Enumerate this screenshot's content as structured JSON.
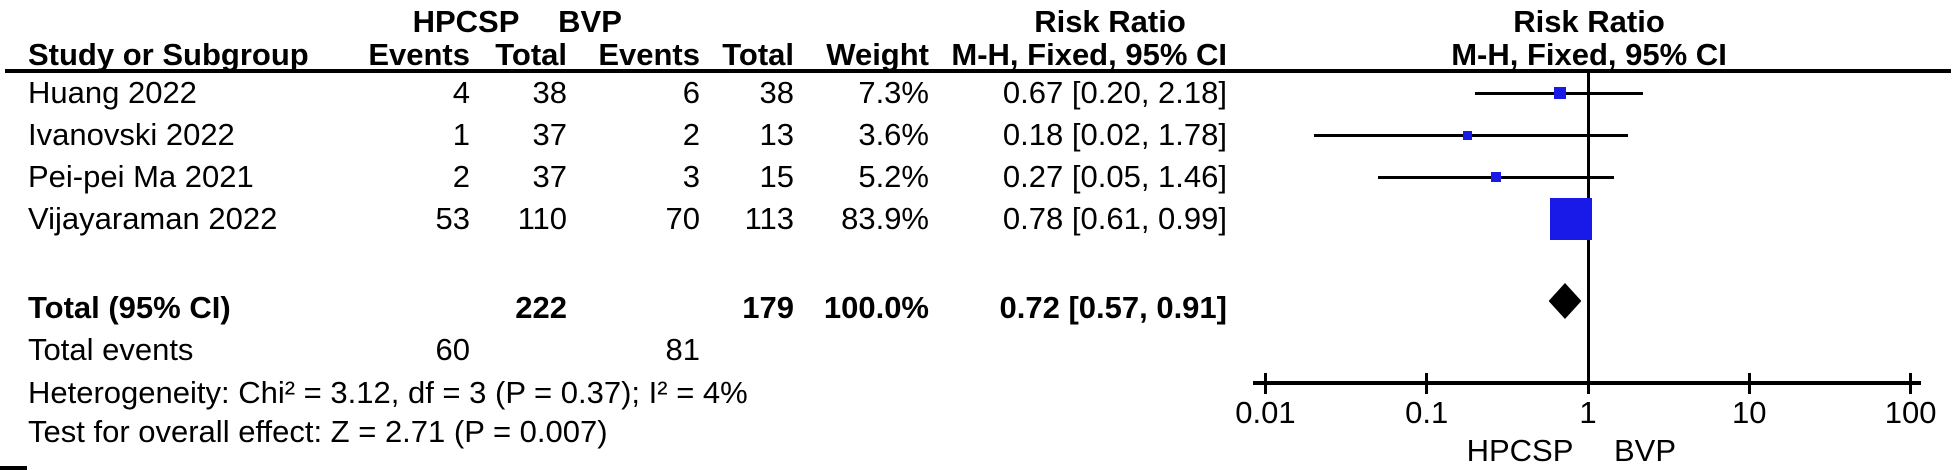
{
  "table": {
    "group1_label": "HPCSP",
    "group2_label": "BVP",
    "col_study": "Study or Subgroup",
    "col_events1": "Events",
    "col_total1": "Total",
    "col_events2": "Events",
    "col_total2": "Total",
    "col_weight": "Weight",
    "col_rr_line1": "Risk Ratio",
    "col_rr_line2": "M-H, Fixed, 95% CI",
    "plot_rr_line1": "Risk Ratio",
    "plot_rr_line2": "M-H, Fixed, 95% CI"
  },
  "chart_data": {
    "type": "forest",
    "scale": "log10",
    "effect_measure": "Risk Ratio, M-H, Fixed, 95% CI",
    "x_ticks": [
      {
        "label": "0.01",
        "value": 0.01
      },
      {
        "label": "0.1",
        "value": 0.1
      },
      {
        "label": "1",
        "value": 1
      },
      {
        "label": "10",
        "value": 10
      },
      {
        "label": "100",
        "value": 100
      }
    ],
    "x_range": [
      0.01,
      100
    ],
    "favours_left": "HPCSP",
    "favours_right": "BVP",
    "marker_color": "#1a1ae8",
    "studies": [
      {
        "name": "Huang 2022",
        "events1": "4",
        "total1": "38",
        "events2": "6",
        "total2": "38",
        "weight": "7.3%",
        "weight_value": 7.3,
        "rr": 0.67,
        "ci_low": 0.2,
        "ci_high": 2.18,
        "ci_label": "0.67 [0.20, 2.18]"
      },
      {
        "name": "Ivanovski 2022",
        "events1": "1",
        "total1": "37",
        "events2": "2",
        "total2": "13",
        "weight": "3.6%",
        "weight_value": 3.6,
        "rr": 0.18,
        "ci_low": 0.02,
        "ci_high": 1.78,
        "ci_label": "0.18 [0.02, 1.78]"
      },
      {
        "name": "Pei-pei Ma 2021",
        "events1": "2",
        "total1": "37",
        "events2": "3",
        "total2": "15",
        "weight": "5.2%",
        "weight_value": 5.2,
        "rr": 0.27,
        "ci_low": 0.05,
        "ci_high": 1.46,
        "ci_label": "0.27 [0.05, 1.46]"
      },
      {
        "name": "Vijayaraman 2022",
        "events1": "53",
        "total1": "110",
        "events2": "70",
        "total2": "113",
        "weight": "83.9%",
        "weight_value": 83.9,
        "rr": 0.78,
        "ci_low": 0.61,
        "ci_high": 0.99,
        "ci_label": "0.78 [0.61, 0.99]"
      }
    ],
    "total": {
      "label": "Total (95% CI)",
      "total1": "222",
      "total2": "179",
      "weight": "100.0%",
      "rr": 0.72,
      "ci_low": 0.57,
      "ci_high": 0.91,
      "ci_label": "0.72 [0.57, 0.91]"
    },
    "total_events": {
      "label": "Total events",
      "events1": "60",
      "events2": "81"
    },
    "heterogeneity": "Heterogeneity: Chi² = 3.12, df = 3 (P = 0.37); I² = 4%",
    "overall_effect": "Test for overall effect: Z = 2.71 (P = 0.007)"
  }
}
